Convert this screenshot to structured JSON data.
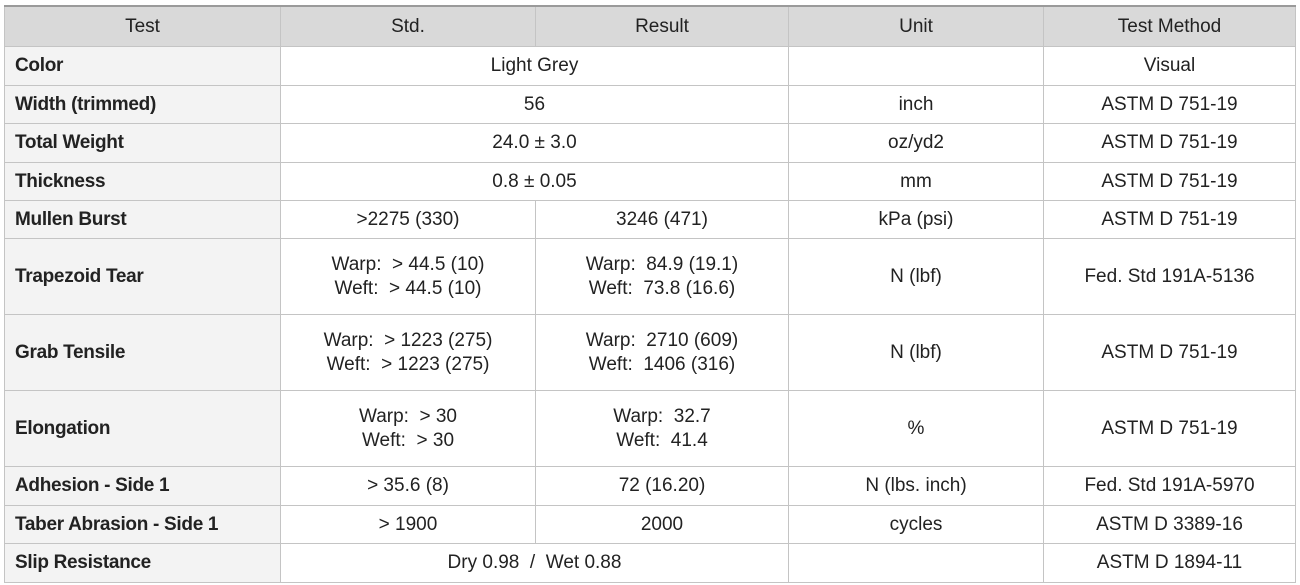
{
  "table": {
    "header": [
      "Test",
      "Std.",
      "Result",
      "Unit",
      "Test Method"
    ],
    "rows": [
      {
        "test": "Color",
        "spec": [
          "Light Grey"
        ],
        "method": "Visual"
      },
      {
        "test": "Width (trimmed)",
        "spec": [
          "56"
        ],
        "unit": "inch",
        "method": "ASTM D 751-19"
      },
      {
        "test": "Total Weight",
        "spec": [
          "24.0 ± 3.0"
        ],
        "unit": "oz/yd2",
        "method": "ASTM D 751-19"
      },
      {
        "test": "Thickness",
        "spec": [
          "0.8 ± 0.05"
        ],
        "unit": "mm",
        "method": "ASTM D 751-19"
      },
      {
        "test": "Mullen Burst",
        "std": [
          ">2275 (330)"
        ],
        "result": [
          "3246 (471)"
        ],
        "unit": "kPa (psi)",
        "method": "ASTM D 751-19"
      },
      {
        "test": "Trapezoid Tear",
        "std": [
          "Warp:  > 44.5 (10)",
          "Weft:  > 44.5 (10)"
        ],
        "result": [
          "Warp:  84.9 (19.1)",
          "Weft:  73.8 (16.6)"
        ],
        "unit": "N (lbf)",
        "method": "Fed. Std 191A-5136"
      },
      {
        "test": "Grab Tensile",
        "std": [
          "Warp:  > 1223 (275)",
          "Weft:  > 1223 (275)"
        ],
        "result": [
          "Warp:  2710 (609)",
          "Weft:  1406 (316)"
        ],
        "unit": "N (lbf)",
        "method": "ASTM D 751-19"
      },
      {
        "test": "Elongation",
        "std": [
          "Warp:  > 30",
          "Weft:  > 30"
        ],
        "result": [
          "Warp:  32.7",
          "Weft:  41.4"
        ],
        "unit": "%",
        "method": "ASTM D 751-19"
      },
      {
        "test": "Adhesion - Side 1",
        "std": [
          "> 35.6 (8)"
        ],
        "result": [
          "72 (16.20)"
        ],
        "unit": "N (lbs. inch)",
        "method": "Fed. Std 191A-5970"
      },
      {
        "test": "Taber Abrasion - Side 1",
        "std": [
          "> 1900"
        ],
        "result": [
          "2000"
        ],
        "unit": "cycles",
        "method": "ASTM D 3389-16"
      },
      {
        "test": "Slip Resistance",
        "spec": [
          "Dry 0.98  /  Wet 0.88"
        ],
        "method": "ASTM D 1894-11"
      }
    ]
  }
}
